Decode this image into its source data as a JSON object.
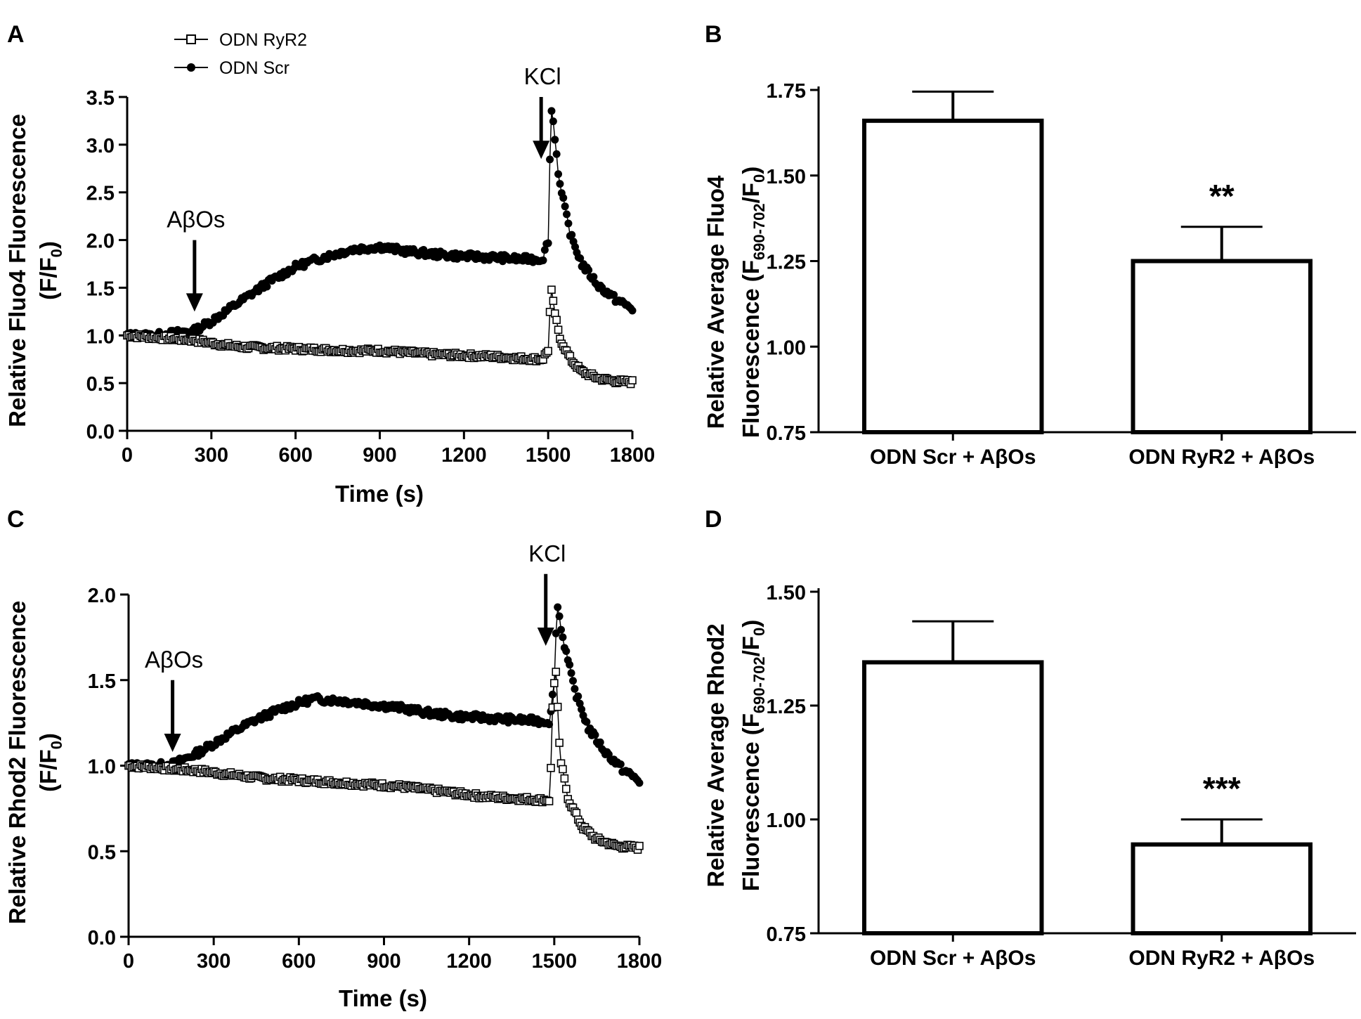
{
  "chart_data": [
    {
      "panel": "A",
      "type": "line",
      "xlabel": "Time (s)",
      "ylabel": "Relative Fluo4 Fluorescence",
      "ylabel2": "(F/F",
      "ylabel2_sub": "0",
      "ylabel2_end": ")",
      "xlim": [
        0,
        1800
      ],
      "ylim": [
        0,
        3.5
      ],
      "xticks": [
        "0",
        "300",
        "600",
        "900",
        "1200",
        "1500",
        "1800"
      ],
      "yticks": [
        "0.0",
        "0.5",
        "1.0",
        "1.5",
        "2.0",
        "2.5",
        "3.0",
        "3.5"
      ],
      "legend": [
        "ODN RyR2",
        "ODN Scr"
      ],
      "annotations": [
        {
          "text": "AβOs",
          "x": 240,
          "arrow_from": 2.0,
          "arrow_to": 1.25
        },
        {
          "text": "KCl",
          "x": 1475,
          "arrow_from": 3.5,
          "arrow_to": 2.85
        }
      ],
      "series": [
        {
          "name": "ODN Scr",
          "marker": "filled-circle",
          "x": [
            0,
            100,
            240,
            300,
            400,
            500,
            600,
            700,
            800,
            900,
            1000,
            1100,
            1200,
            1300,
            1400,
            1480,
            1500,
            1510,
            1520,
            1540,
            1580,
            1620,
            1680,
            1740,
            1800
          ],
          "y": [
            1.0,
            1.0,
            1.05,
            1.15,
            1.35,
            1.55,
            1.72,
            1.82,
            1.9,
            1.93,
            1.88,
            1.85,
            1.83,
            1.82,
            1.8,
            1.8,
            2.0,
            3.4,
            3.2,
            2.6,
            2.05,
            1.75,
            1.52,
            1.38,
            1.28
          ]
        },
        {
          "name": "ODN RyR2",
          "marker": "open-square",
          "x": [
            0,
            100,
            240,
            300,
            400,
            500,
            600,
            700,
            800,
            900,
            1000,
            1100,
            1200,
            1300,
            1400,
            1480,
            1500,
            1510,
            1520,
            1540,
            1580,
            1620,
            1680,
            1740,
            1800
          ],
          "y": [
            1.0,
            0.98,
            0.95,
            0.92,
            0.88,
            0.87,
            0.86,
            0.85,
            0.84,
            0.84,
            0.82,
            0.8,
            0.79,
            0.78,
            0.76,
            0.75,
            0.85,
            1.5,
            1.3,
            0.98,
            0.75,
            0.62,
            0.55,
            0.52,
            0.51
          ]
        }
      ]
    },
    {
      "panel": "B",
      "type": "bar",
      "ylabel": "Relative Average Fluo4",
      "ylabel2": "Fluorescence (F",
      "ylabel2_sub1": "690-702",
      "ylabel2_mid": "/F",
      "ylabel2_sub2": "0",
      "ylabel2_end": ")",
      "ylim": [
        0.75,
        1.75
      ],
      "yticks": [
        "0.75",
        "1.00",
        "1.25",
        "1.50",
        "1.75"
      ],
      "categories": [
        "ODN Scr + AβOs",
        "ODN RyR2 + AβOs"
      ],
      "values": [
        1.66,
        1.25
      ],
      "errors": [
        0.085,
        0.1
      ],
      "significance": [
        "",
        "**"
      ]
    },
    {
      "panel": "C",
      "type": "line",
      "xlabel": "Time (s)",
      "ylabel": "Relative Rhod2 Fluorescence",
      "ylabel2": "(F/F",
      "ylabel2_sub": "0",
      "ylabel2_end": ")",
      "xlim": [
        0,
        1800
      ],
      "ylim": [
        0,
        2.0
      ],
      "xticks": [
        "0",
        "300",
        "600",
        "900",
        "1200",
        "1500",
        "1800"
      ],
      "yticks": [
        "0.0",
        "0.5",
        "1.0",
        "1.5",
        "2.0"
      ],
      "annotations": [
        {
          "text": "AβOs",
          "x": 155,
          "arrow_from": 1.5,
          "arrow_to": 1.08
        },
        {
          "text": "KCl",
          "x": 1470,
          "arrow_from": 2.12,
          "arrow_to": 1.7
        }
      ],
      "series": [
        {
          "name": "ODN Scr",
          "marker": "filled-circle",
          "x": [
            0,
            100,
            160,
            250,
            350,
            450,
            550,
            650,
            750,
            850,
            950,
            1050,
            1150,
            1250,
            1350,
            1450,
            1485,
            1500,
            1510,
            1530,
            1570,
            1620,
            1680,
            1740,
            1800
          ],
          "y": [
            1.0,
            1.0,
            1.01,
            1.08,
            1.18,
            1.27,
            1.34,
            1.39,
            1.38,
            1.36,
            1.34,
            1.31,
            1.29,
            1.28,
            1.27,
            1.26,
            1.26,
            1.5,
            1.95,
            1.75,
            1.45,
            1.22,
            1.08,
            0.98,
            0.91
          ]
        },
        {
          "name": "ODN RyR2",
          "marker": "open-square",
          "x": [
            0,
            100,
            160,
            250,
            350,
            450,
            550,
            650,
            750,
            850,
            950,
            1050,
            1150,
            1250,
            1350,
            1450,
            1485,
            1495,
            1505,
            1520,
            1550,
            1600,
            1650,
            1720,
            1800
          ],
          "y": [
            1.0,
            0.99,
            0.98,
            0.97,
            0.95,
            0.93,
            0.92,
            0.91,
            0.9,
            0.89,
            0.88,
            0.86,
            0.84,
            0.82,
            0.81,
            0.8,
            0.8,
            1.4,
            1.58,
            1.05,
            0.8,
            0.64,
            0.57,
            0.53,
            0.52
          ]
        }
      ]
    },
    {
      "panel": "D",
      "type": "bar",
      "ylabel": "Relative Average Rhod2",
      "ylabel2": "Fluorescence  (F",
      "ylabel2_sub1": "690-702",
      "ylabel2_mid": "/F",
      "ylabel2_sub2": "0",
      "ylabel2_end": ")",
      "ylim": [
        0.75,
        1.5
      ],
      "yticks": [
        "0.75",
        "1.00",
        "1.25",
        "1.50"
      ],
      "categories": [
        "ODN Scr + AβOs",
        "ODN RyR2 + AβOs"
      ],
      "values": [
        1.345,
        0.945
      ],
      "errors": [
        0.09,
        0.055
      ],
      "significance": [
        "",
        "***"
      ]
    }
  ]
}
